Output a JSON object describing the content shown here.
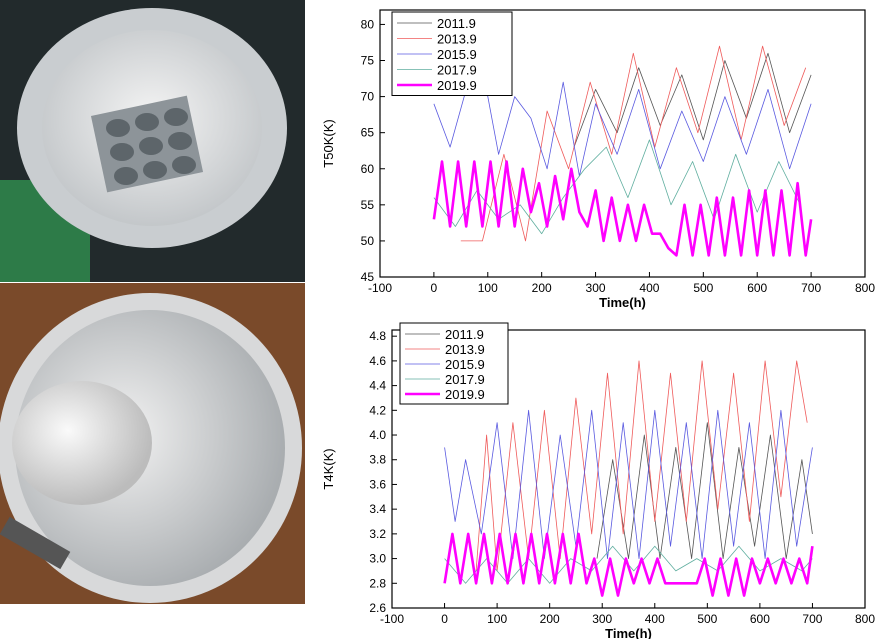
{
  "photos": [
    {
      "name": "upper-flange-photo"
    },
    {
      "name": "lower-flange-photo"
    }
  ],
  "chart_data": [
    {
      "type": "line",
      "title": "",
      "xlabel": "Time(h)",
      "ylabel": "T50K(K)",
      "xlim": [
        -100,
        800
      ],
      "ylim": [
        45,
        82
      ],
      "xticks": [
        -100,
        0,
        100,
        200,
        300,
        400,
        500,
        600,
        700,
        800
      ],
      "yticks": [
        45,
        50,
        55,
        60,
        65,
        70,
        75,
        80
      ],
      "legend_position": "top-left",
      "series": [
        {
          "name": "2011.9",
          "color": "#555555",
          "width": 0.8,
          "x": [
            260,
            300,
            340,
            380,
            420,
            460,
            500,
            540,
            580,
            620,
            660,
            700
          ],
          "y": [
            63,
            71,
            65,
            74,
            66,
            73,
            64,
            75,
            67,
            76,
            65,
            73
          ]
        },
        {
          "name": "2013.9",
          "color": "#ef5b5b",
          "width": 0.8,
          "x": [
            50,
            70,
            90,
            130,
            170,
            210,
            250,
            290,
            330,
            370,
            410,
            450,
            490,
            530,
            570,
            610,
            650,
            690
          ],
          "y": [
            50,
            50,
            50,
            62,
            50,
            68,
            60,
            72,
            62,
            76,
            63,
            74,
            65,
            77,
            64,
            77,
            66,
            74
          ]
        },
        {
          "name": "2015.9",
          "color": "#5a5ae0",
          "width": 0.8,
          "x": [
            0,
            30,
            60,
            90,
            120,
            150,
            180,
            210,
            240,
            270,
            300,
            340,
            380,
            420,
            460,
            500,
            540,
            580,
            620,
            660,
            700
          ],
          "y": [
            69,
            63,
            71,
            74,
            62,
            70,
            67,
            60,
            72,
            59,
            69,
            62,
            71,
            60,
            68,
            61,
            70,
            62,
            71,
            60,
            69
          ]
        },
        {
          "name": "2017.9",
          "color": "#5fae9f",
          "width": 0.8,
          "x": [
            0,
            40,
            80,
            120,
            160,
            200,
            240,
            280,
            320,
            360,
            400,
            440,
            480,
            520,
            560,
            600,
            640,
            680
          ],
          "y": [
            56,
            52,
            57,
            53,
            55,
            51,
            56,
            60,
            63,
            56,
            64,
            55,
            61,
            53,
            62,
            54,
            61,
            55
          ]
        },
        {
          "name": "2019.9",
          "color": "#ff00ff",
          "width": 2.6,
          "x": [
            0,
            15,
            30,
            45,
            60,
            75,
            90,
            105,
            120,
            135,
            150,
            165,
            180,
            195,
            210,
            225,
            240,
            255,
            270,
            285,
            300,
            315,
            330,
            345,
            360,
            375,
            390,
            405,
            420,
            435,
            450,
            465,
            480,
            495,
            510,
            525,
            540,
            555,
            570,
            585,
            600,
            615,
            630,
            645,
            660,
            675,
            690,
            700
          ],
          "y": [
            53,
            61,
            52,
            61,
            52,
            61,
            52,
            61,
            52,
            61,
            52,
            60,
            54,
            58,
            52,
            59,
            53,
            60,
            54,
            52,
            57,
            50,
            56,
            50,
            55,
            50,
            55,
            51,
            51,
            49,
            48,
            55,
            48,
            55,
            48,
            56,
            48,
            56,
            48,
            57,
            48,
            57,
            48,
            57,
            48,
            58,
            48,
            53
          ]
        }
      ]
    },
    {
      "type": "line",
      "title": "",
      "xlabel": "Time(h)",
      "ylabel": "T4K(K)",
      "xlim": [
        -100,
        800
      ],
      "ylim": [
        2.6,
        4.85
      ],
      "xticks": [
        -100,
        0,
        100,
        200,
        300,
        400,
        500,
        600,
        700,
        800
      ],
      "yticks": [
        2.6,
        2.8,
        3.0,
        3.2,
        3.4,
        3.6,
        3.8,
        4.0,
        4.2,
        4.4,
        4.6,
        4.8
      ],
      "legend_position": "top-left",
      "series": [
        {
          "name": "2011.9",
          "color": "#555555",
          "width": 0.8,
          "x": [
            290,
            320,
            350,
            380,
            410,
            440,
            470,
            500,
            530,
            560,
            590,
            620,
            650,
            680,
            700
          ],
          "y": [
            3.0,
            3.8,
            3.0,
            4.0,
            3.0,
            3.9,
            3.0,
            4.1,
            3.0,
            3.9,
            3.1,
            4.0,
            3.0,
            3.8,
            3.2
          ]
        },
        {
          "name": "2013.9",
          "color": "#ef5b5b",
          "width": 0.8,
          "x": [
            60,
            80,
            100,
            130,
            160,
            190,
            220,
            250,
            280,
            310,
            340,
            370,
            400,
            430,
            460,
            490,
            520,
            550,
            580,
            610,
            640,
            670,
            690
          ],
          "y": [
            2.9,
            4.0,
            2.9,
            4.1,
            3.0,
            4.2,
            3.0,
            4.3,
            3.2,
            4.5,
            3.2,
            4.6,
            3.3,
            4.5,
            3.3,
            4.6,
            3.4,
            4.5,
            3.3,
            4.6,
            3.5,
            4.6,
            4.1
          ]
        },
        {
          "name": "2015.9",
          "color": "#5a5ae0",
          "width": 0.8,
          "x": [
            0,
            20,
            40,
            70,
            100,
            130,
            160,
            190,
            220,
            250,
            280,
            310,
            340,
            370,
            400,
            430,
            460,
            490,
            520,
            550,
            580,
            610,
            640,
            670,
            700
          ],
          "y": [
            3.9,
            3.3,
            3.8,
            3.2,
            4.1,
            3.0,
            4.2,
            3.0,
            4.0,
            3.1,
            4.2,
            3.0,
            4.1,
            3.0,
            4.2,
            3.1,
            4.1,
            3.0,
            4.2,
            3.1,
            4.1,
            3.0,
            4.2,
            3.1,
            3.9
          ]
        },
        {
          "name": "2017.9",
          "color": "#5fae9f",
          "width": 0.8,
          "x": [
            0,
            40,
            80,
            120,
            160,
            200,
            240,
            280,
            320,
            360,
            400,
            440,
            480,
            520,
            560,
            600,
            640,
            680,
            700
          ],
          "y": [
            3.0,
            2.8,
            3.0,
            2.8,
            3.0,
            2.8,
            3.0,
            2.9,
            3.1,
            2.9,
            3.1,
            2.9,
            3.0,
            2.9,
            3.1,
            2.9,
            3.0,
            2.9,
            3.0
          ]
        },
        {
          "name": "2019.9",
          "color": "#ff00ff",
          "width": 2.6,
          "x": [
            0,
            15,
            30,
            45,
            60,
            75,
            90,
            105,
            120,
            135,
            150,
            165,
            180,
            195,
            210,
            225,
            240,
            255,
            270,
            285,
            300,
            315,
            330,
            345,
            360,
            375,
            390,
            405,
            420,
            435,
            450,
            465,
            480,
            495,
            510,
            525,
            540,
            555,
            570,
            585,
            600,
            615,
            630,
            645,
            660,
            675,
            690,
            700
          ],
          "y": [
            2.8,
            3.2,
            2.8,
            3.2,
            2.8,
            3.2,
            2.8,
            3.2,
            2.8,
            3.2,
            2.8,
            3.2,
            2.8,
            3.2,
            2.8,
            3.2,
            2.8,
            3.2,
            2.8,
            3.0,
            2.7,
            3.0,
            2.7,
            3.0,
            2.8,
            3.0,
            2.8,
            3.0,
            2.8,
            2.8,
            2.8,
            2.8,
            2.8,
            3.0,
            2.7,
            3.0,
            2.7,
            3.0,
            2.7,
            3.0,
            2.8,
            3.0,
            2.8,
            3.0,
            2.8,
            3.0,
            2.8,
            3.1
          ]
        }
      ]
    }
  ]
}
